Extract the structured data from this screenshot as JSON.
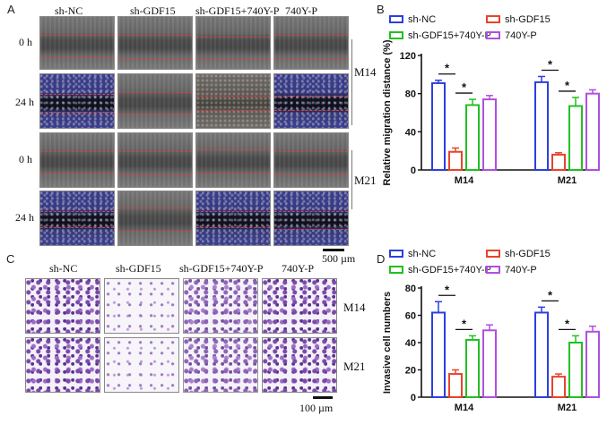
{
  "panels": {
    "a": {
      "letter": "A",
      "columns": [
        "sh-NC",
        "sh-GDF15",
        "sh-GDF15+740Y-P",
        "740Y-P"
      ],
      "row_labels": [
        "0 h",
        "24 h",
        "0 h",
        "24 h"
      ],
      "groups": [
        "M14",
        "M21"
      ],
      "scale_label": "500 µm"
    },
    "c": {
      "letter": "C",
      "columns": [
        "sh-NC",
        "sh-GDF15",
        "sh-GDF15+740Y-P",
        "740Y-P"
      ],
      "groups": [
        "M14",
        "M21"
      ],
      "scale_label": "100 µm"
    },
    "b": {
      "letter": "B"
    },
    "d": {
      "letter": "D"
    }
  },
  "colors": {
    "sh-NC": "#2b3fe0",
    "sh-GDF15": "#e8432b",
    "sh-GDF15+740Y-P": "#22c022",
    "740Y-P": "#b04fe0"
  },
  "chart_data": [
    {
      "id": "B",
      "type": "bar",
      "ylabel": "Relative migration distance (%)",
      "ylim": [
        0,
        120
      ],
      "yticks": [
        0,
        40,
        80,
        120
      ],
      "categories": [
        "M14",
        "M21"
      ],
      "legend": [
        "sh-NC",
        "sh-GDF15",
        "sh-GDF15+740Y-P",
        "740Y-P"
      ],
      "series": [
        {
          "name": "sh-NC",
          "values": [
            91,
            92
          ],
          "errors": [
            3,
            6
          ]
        },
        {
          "name": "sh-GDF15",
          "values": [
            19,
            16
          ],
          "errors": [
            4,
            2
          ]
        },
        {
          "name": "sh-GDF15+740Y-P",
          "values": [
            68,
            67
          ],
          "errors": [
            6,
            9
          ]
        },
        {
          "name": "740Y-P",
          "values": [
            74,
            80
          ],
          "errors": [
            4,
            4
          ]
        }
      ],
      "significance": [
        {
          "category": 0,
          "from": 0,
          "to": 1,
          "label": "*"
        },
        {
          "category": 0,
          "from": 1,
          "to": 2,
          "label": "*"
        },
        {
          "category": 1,
          "from": 0,
          "to": 1,
          "label": "*"
        },
        {
          "category": 1,
          "from": 1,
          "to": 2,
          "label": "*"
        }
      ]
    },
    {
      "id": "D",
      "type": "bar",
      "ylabel": "Invasive cell numbers",
      "ylim": [
        0,
        80
      ],
      "yticks": [
        0,
        20,
        40,
        60,
        80
      ],
      "categories": [
        "M14",
        "M21"
      ],
      "legend": [
        "sh-NC",
        "sh-GDF15",
        "sh-GDF15+740Y-P",
        "740Y-P"
      ],
      "series": [
        {
          "name": "sh-NC",
          "values": [
            62,
            62
          ],
          "errors": [
            8,
            4
          ]
        },
        {
          "name": "sh-GDF15",
          "values": [
            17,
            15
          ],
          "errors": [
            3,
            2
          ]
        },
        {
          "name": "sh-GDF15+740Y-P",
          "values": [
            42,
            40
          ],
          "errors": [
            3,
            5
          ]
        },
        {
          "name": "740Y-P",
          "values": [
            49,
            48
          ],
          "errors": [
            4,
            4
          ]
        }
      ],
      "significance": [
        {
          "category": 0,
          "from": 0,
          "to": 1,
          "label": "*"
        },
        {
          "category": 0,
          "from": 1,
          "to": 2,
          "label": "*"
        },
        {
          "category": 1,
          "from": 0,
          "to": 1,
          "label": "*"
        },
        {
          "category": 1,
          "from": 1,
          "to": 2,
          "label": "*"
        }
      ]
    }
  ]
}
